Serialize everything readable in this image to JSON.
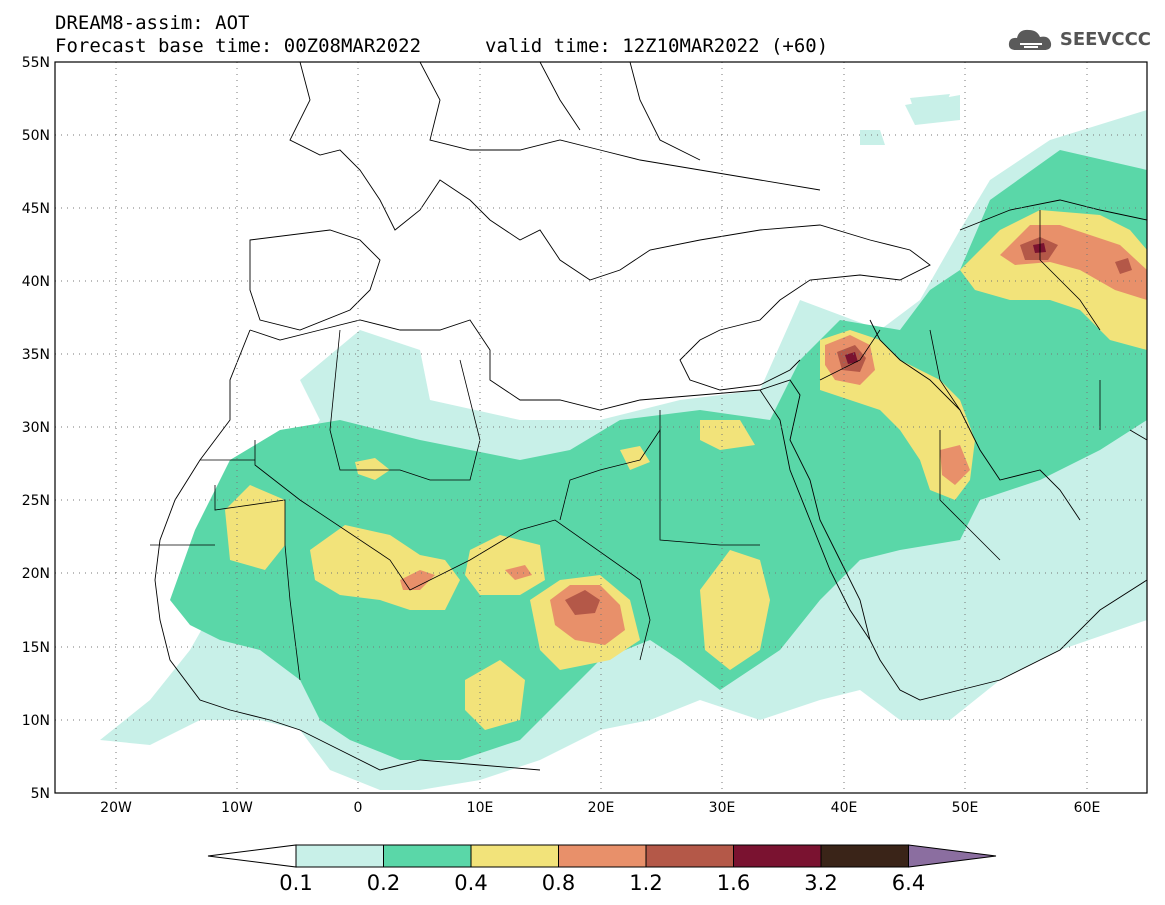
{
  "header": {
    "line1": "DREAM8-assim: AOT",
    "base_time": "Forecast base time: 00Z08MAR2022",
    "valid_time": "valid time: 12Z10MAR2022 (+60)"
  },
  "logo": {
    "icon": "cloud-icon",
    "text": "SEEVCCC"
  },
  "map": {
    "lon_range": [
      -25,
      65
    ],
    "lat_range": [
      5,
      55
    ],
    "lat_labels": [
      "55N",
      "50N",
      "45N",
      "40N",
      "35N",
      "30N",
      "25N",
      "20N",
      "15N",
      "10N",
      "5N"
    ],
    "lon_labels": [
      "20W",
      "10W",
      "0",
      "10E",
      "20E",
      "30E",
      "40E",
      "50E",
      "60E"
    ]
  },
  "colorbar": {
    "levels": [
      "0.1",
      "0.2",
      "0.4",
      "0.8",
      "1.2",
      "1.6",
      "3.2",
      "6.4"
    ],
    "colors": [
      "#c8f0e8",
      "#5ad7a8",
      "#f2e37a",
      "#e8906a",
      "#b45848",
      "#7a1230",
      "#3a2418",
      "#8b6ea0"
    ]
  }
}
